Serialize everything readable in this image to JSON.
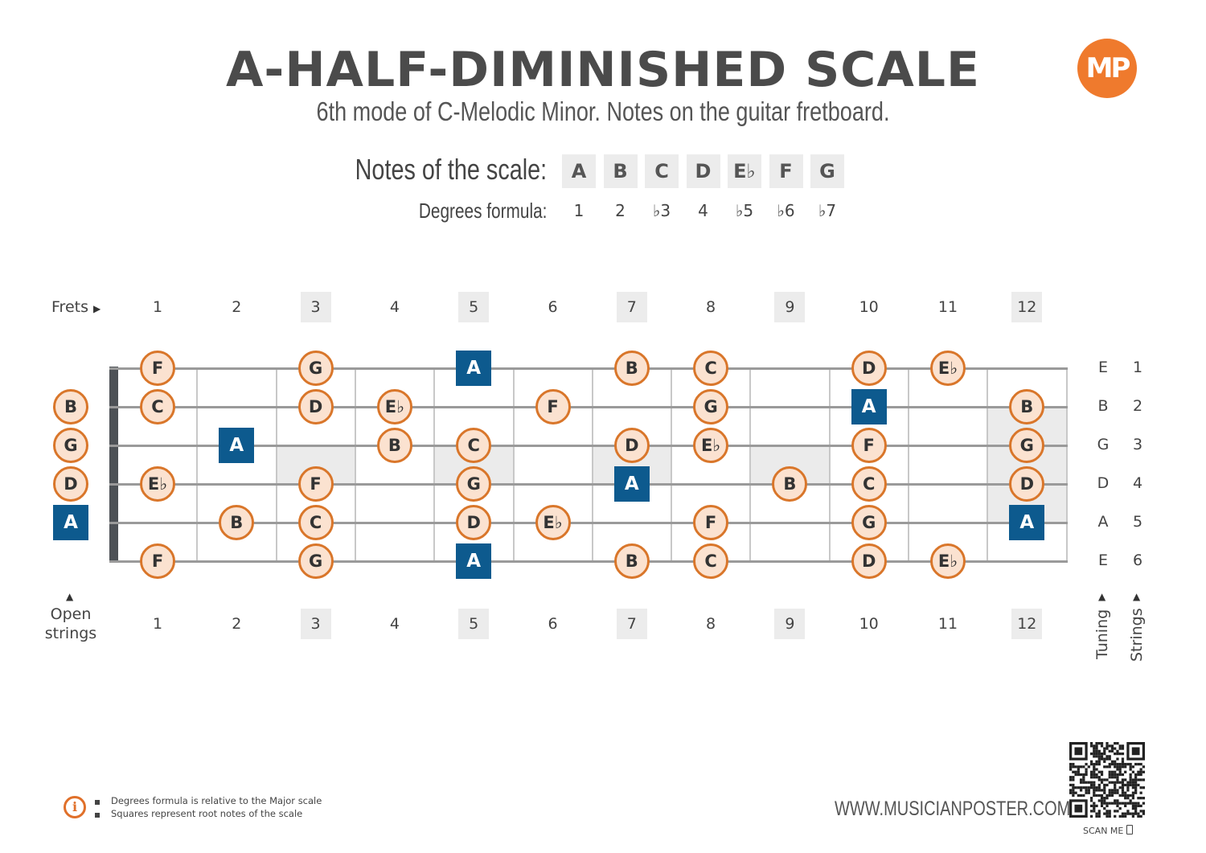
{
  "title": "A-HALF-DIMINISHED SCALE",
  "subtitle": "6th mode of C-Melodic Minor. Notes on the guitar fretboard.",
  "logo": {
    "text": "MP",
    "color": "#ef7a2d"
  },
  "scale": {
    "notes_label": "Notes of the scale:",
    "degrees_label": "Degrees formula:",
    "notes": [
      "A",
      "B",
      "C",
      "D",
      "E♭",
      "F",
      "G"
    ],
    "degrees": [
      "1",
      "2",
      "♭3",
      "4",
      "♭5",
      "♭6",
      "♭7"
    ]
  },
  "frets_label": "Frets",
  "fret_numbers": [
    "1",
    "2",
    "3",
    "4",
    "5",
    "6",
    "7",
    "8",
    "9",
    "10",
    "11",
    "12"
  ],
  "highlighted_frets": [
    3,
    5,
    7,
    9,
    12
  ],
  "open_strings_label": [
    "Open",
    "strings"
  ],
  "tuning_label": "Tuning",
  "strings_label": "Strings",
  "strings": [
    {
      "tuning": "E",
      "number": "1",
      "open": null,
      "notes": [
        [
          1,
          "F"
        ],
        [
          3,
          "G"
        ],
        [
          5,
          "A",
          true
        ],
        [
          7,
          "B"
        ],
        [
          8,
          "C"
        ],
        [
          10,
          "D"
        ],
        [
          11,
          "E♭"
        ]
      ]
    },
    {
      "tuning": "B",
      "number": "2",
      "open": [
        "B",
        false
      ],
      "notes": [
        [
          1,
          "C"
        ],
        [
          3,
          "D"
        ],
        [
          4,
          "E♭"
        ],
        [
          6,
          "F"
        ],
        [
          8,
          "G"
        ],
        [
          10,
          "A",
          true
        ],
        [
          12,
          "B"
        ]
      ]
    },
    {
      "tuning": "G",
      "number": "3",
      "open": [
        "G",
        false
      ],
      "notes": [
        [
          2,
          "A",
          true
        ],
        [
          4,
          "B"
        ],
        [
          5,
          "C"
        ],
        [
          7,
          "D"
        ],
        [
          8,
          "E♭"
        ],
        [
          10,
          "F"
        ],
        [
          12,
          "G"
        ]
      ]
    },
    {
      "tuning": "D",
      "number": "4",
      "open": [
        "D",
        false
      ],
      "notes": [
        [
          1,
          "E♭"
        ],
        [
          3,
          "F"
        ],
        [
          5,
          "G"
        ],
        [
          7,
          "A",
          true
        ],
        [
          9,
          "B"
        ],
        [
          10,
          "C"
        ],
        [
          12,
          "D"
        ]
      ]
    },
    {
      "tuning": "A",
      "number": "5",
      "open": [
        "A",
        true
      ],
      "notes": [
        [
          2,
          "B"
        ],
        [
          3,
          "C"
        ],
        [
          5,
          "D"
        ],
        [
          6,
          "E♭"
        ],
        [
          8,
          "F"
        ],
        [
          10,
          "G"
        ],
        [
          12,
          "A",
          true
        ]
      ]
    },
    {
      "tuning": "E",
      "number": "6",
      "open": null,
      "notes": [
        [
          1,
          "F"
        ],
        [
          3,
          "G"
        ],
        [
          5,
          "A",
          true
        ],
        [
          7,
          "B"
        ],
        [
          8,
          "C"
        ],
        [
          10,
          "D"
        ],
        [
          11,
          "E♭"
        ]
      ]
    }
  ],
  "footer": {
    "info": [
      "Degrees formula is relative to the Major scale",
      "Squares represent root notes of the scale"
    ],
    "website": "WWW.MUSICIANPOSTER.COM",
    "scan": "SCAN ME"
  },
  "colors": {
    "accent": "#d9762a",
    "note_fill": "#fbe2d0",
    "root": "#0d5a8e"
  }
}
